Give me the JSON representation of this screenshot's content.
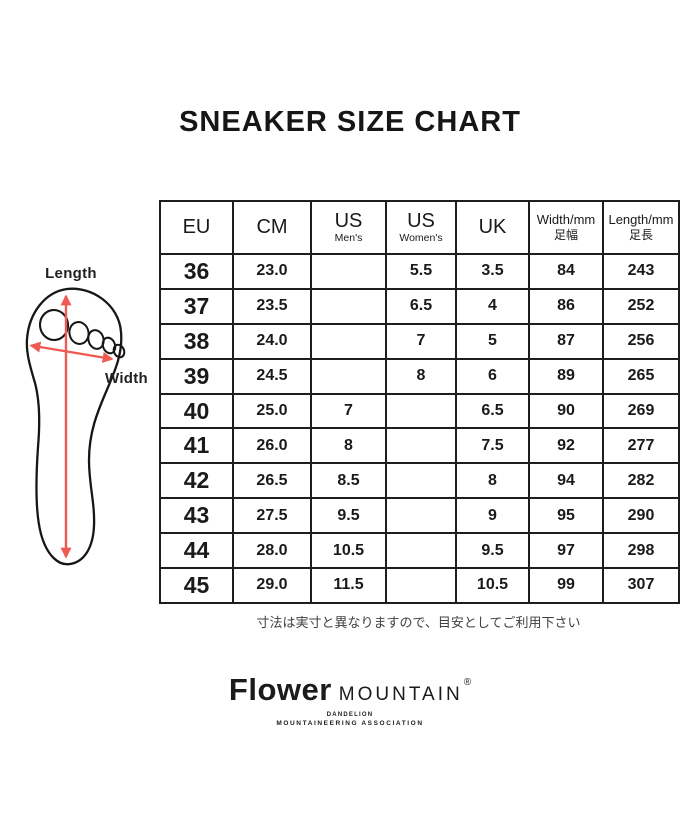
{
  "title": "SNEAKER SIZE CHART",
  "diagram": {
    "length_label": "Length",
    "width_label": "Width"
  },
  "note": "寸法は実寸と異なりますので、目安としてご利用下さい",
  "logo": {
    "brand_bold": "Flower",
    "brand_light": "MOUNTAIN",
    "registered": "®",
    "sub_line1": "DANDELION",
    "sub_line2": "MOUNTAINEERING ASSOCIATION"
  },
  "colors": {
    "arrow_accent": "#EF5B52",
    "line": "#1D1D1D"
  },
  "chart_data": {
    "type": "table",
    "title": "SNEAKER SIZE CHART",
    "columns": [
      {
        "label": "EU",
        "sublabel": ""
      },
      {
        "label": "CM",
        "sublabel": ""
      },
      {
        "label": "US",
        "sublabel": "Men's"
      },
      {
        "label": "US",
        "sublabel": "Women's"
      },
      {
        "label": "UK",
        "sublabel": ""
      },
      {
        "label": "Width/mm",
        "sublabel": "足幅"
      },
      {
        "label": "Length/mm",
        "sublabel": "足長"
      }
    ],
    "rows": [
      [
        "36",
        "23.0",
        "",
        "5.5",
        "3.5",
        "84",
        "243"
      ],
      [
        "37",
        "23.5",
        "",
        "6.5",
        "4",
        "86",
        "252"
      ],
      [
        "38",
        "24.0",
        "",
        "7",
        "5",
        "87",
        "256"
      ],
      [
        "39",
        "24.5",
        "",
        "8",
        "6",
        "89",
        "265"
      ],
      [
        "40",
        "25.0",
        "7",
        "",
        "6.5",
        "90",
        "269"
      ],
      [
        "41",
        "26.0",
        "8",
        "",
        "7.5",
        "92",
        "277"
      ],
      [
        "42",
        "26.5",
        "8.5",
        "",
        "8",
        "94",
        "282"
      ],
      [
        "43",
        "27.5",
        "9.5",
        "",
        "9",
        "95",
        "290"
      ],
      [
        "44",
        "28.0",
        "10.5",
        "",
        "9.5",
        "97",
        "298"
      ],
      [
        "45",
        "29.0",
        "11.5",
        "",
        "10.5",
        "99",
        "307"
      ]
    ]
  }
}
